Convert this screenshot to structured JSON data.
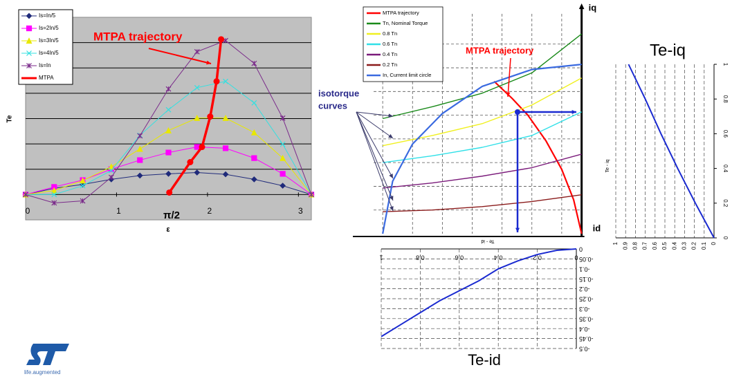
{
  "chart_data": [
    {
      "type": "line",
      "x_label": "ε",
      "y_label": "Te",
      "x": [
        0,
        0.314,
        0.628,
        0.942,
        1.257,
        1.571,
        1.885,
        2.199,
        2.513,
        2.827,
        3.142
      ],
      "xlim": [
        0,
        3.142
      ],
      "xticks": [
        0,
        1,
        2,
        3
      ],
      "ylim": [
        -1,
        7
      ],
      "yticks": [
        0,
        1,
        2,
        3,
        4,
        5,
        6
      ],
      "ytick_labels": false,
      "grid": true,
      "legend": "upper left",
      "series": [
        {
          "name": "Is=In/5",
          "color": "#1f2a7a",
          "marker": "diamond",
          "values": [
            0,
            0.25,
            0.4,
            0.6,
            0.75,
            0.82,
            0.87,
            0.8,
            0.6,
            0.35,
            0
          ]
        },
        {
          "name": "Is=2In/5",
          "color": "#ff00ff",
          "marker": "square",
          "values": [
            0,
            0.3,
            0.57,
            1.0,
            1.36,
            1.66,
            1.88,
            1.83,
            1.44,
            0.82,
            0
          ]
        },
        {
          "name": "Is=3In/5",
          "color": "#e8e800",
          "marker": "triangle",
          "values": [
            0,
            0.16,
            0.55,
            1.1,
            1.8,
            2.53,
            3.02,
            3.02,
            2.45,
            1.44,
            0
          ]
        },
        {
          "name": "Is=4In/5",
          "color": "#33e0e0",
          "marker": "x",
          "values": [
            0,
            0,
            0.35,
            0.95,
            2.34,
            3.35,
            4.22,
            4.47,
            3.62,
            1.99,
            0
          ]
        },
        {
          "name": "Is=In",
          "color": "#7a2a8a",
          "marker": "star",
          "values": [
            0,
            -0.33,
            -0.25,
            0.68,
            2.32,
            4.17,
            5.64,
            6.08,
            5.18,
            3.02,
            0
          ]
        },
        {
          "name": "MTPA",
          "color": "#ff0000",
          "marker": "circle",
          "x": [
            1.58,
            1.81,
            1.94,
            2.03,
            2.1,
            2.15
          ],
          "values": [
            0.08,
            1.28,
            1.88,
            3.08,
            4.47,
            6.13
          ]
        }
      ],
      "annotations": [
        "MTPA trajectory",
        "π/2"
      ]
    },
    {
      "type": "line",
      "x_label": "id",
      "y_label": "iq",
      "xlim": [
        -1.15,
        0.05
      ],
      "xticks": [
        -1,
        -0.85,
        -0.7,
        -0.55,
        -0.4,
        -0.25,
        -0.1
      ],
      "ylim": [
        0,
        1.36
      ],
      "yticks": [
        0.14,
        0.28,
        0.42,
        0.56,
        0.7,
        0.84,
        0.98,
        1.12
      ],
      "tick_labels": false,
      "grid": true,
      "legend": "upper left",
      "series": [
        {
          "name": "MTPA trajectory",
          "color": "#ff0000",
          "x": [
            -0.44,
            -0.35,
            -0.27,
            -0.18,
            -0.1,
            -0.04,
            0
          ],
          "values": [
            0.9,
            0.8,
            0.7,
            0.55,
            0.38,
            0.2,
            0
          ]
        },
        {
          "name": "Tn, Nominal Torque",
          "color": "#1a8a1a",
          "x": [
            -1,
            -0.75,
            -0.5,
            -0.25,
            0
          ],
          "values": [
            0.68,
            0.75,
            0.83,
            0.95,
            1.18
          ]
        },
        {
          "name": "0.8 Tn",
          "color": "#f0f020",
          "x": [
            -1,
            -0.75,
            -0.5,
            -0.25,
            0
          ],
          "values": [
            0.52,
            0.58,
            0.65,
            0.76,
            0.92
          ]
        },
        {
          "name": "0.6 Tn",
          "color": "#30e0e8",
          "x": [
            -1,
            -0.75,
            -0.5,
            -0.25,
            0
          ],
          "values": [
            0.42,
            0.46,
            0.51,
            0.58,
            0.72
          ]
        },
        {
          "name": "0.4 Tn",
          "color": "#7a1a7a",
          "x": [
            -1,
            -0.75,
            -0.5,
            -0.25,
            0
          ],
          "values": [
            0.27,
            0.3,
            0.34,
            0.39,
            0.47
          ]
        },
        {
          "name": "0.2 Tn",
          "color": "#8a1a1a",
          "x": [
            -1,
            -0.75,
            -0.5,
            -0.25,
            0
          ],
          "values": [
            0.13,
            0.14,
            0.16,
            0.19,
            0.23
          ]
        },
        {
          "name": "In, Current limit circle",
          "color": "#3a6ae0",
          "x": [
            -1,
            -0.95,
            -0.85,
            -0.7,
            -0.5,
            -0.25,
            0
          ],
          "values": [
            0,
            0.31,
            0.53,
            0.71,
            0.87,
            0.97,
            1
          ]
        }
      ],
      "annotations": [
        "MTPA trajectory",
        "isotorque",
        "curves"
      ]
    },
    {
      "type": "line",
      "title": "Te-id",
      "x_label": "Te - id",
      "color": "#1a2ad0",
      "x": [
        0,
        0.1,
        0.2,
        0.3,
        0.4,
        0.5,
        0.6,
        0.7,
        0.8,
        0.9,
        1
      ],
      "values": [
        0,
        -0.007,
        -0.028,
        -0.06,
        -0.1,
        -0.16,
        -0.21,
        -0.26,
        -0.32,
        -0.38,
        -0.44
      ],
      "xlim": [
        0,
        1
      ],
      "xticks": [
        0,
        0.2,
        0.4,
        0.6,
        0.8,
        1
      ],
      "ylim": [
        0,
        -0.5
      ],
      "yticks": [
        0,
        -0.05,
        -0.1,
        -0.15,
        -0.2,
        -0.25,
        -0.3,
        -0.35,
        -0.4,
        -0.45,
        -0.5
      ],
      "grid": true
    },
    {
      "type": "line",
      "title": "Te-iq",
      "x_label": "Te - iq",
      "color": "#1a2ad0",
      "x": [
        0,
        0.19,
        0.37,
        0.54,
        0.7,
        0.87
      ],
      "values": [
        0,
        0.2,
        0.4,
        0.6,
        0.8,
        1
      ],
      "xlim": [
        0,
        1
      ],
      "xticks": [
        0,
        0.1,
        0.2,
        0.3,
        0.4,
        0.5,
        0.6,
        0.7,
        0.8,
        0.9,
        1
      ],
      "ylim": [
        0,
        1
      ],
      "yticks": [
        0,
        0.2,
        0.4,
        0.6,
        0.8,
        1
      ],
      "grid": true
    }
  ],
  "logo": {
    "text": "life.augmented"
  }
}
